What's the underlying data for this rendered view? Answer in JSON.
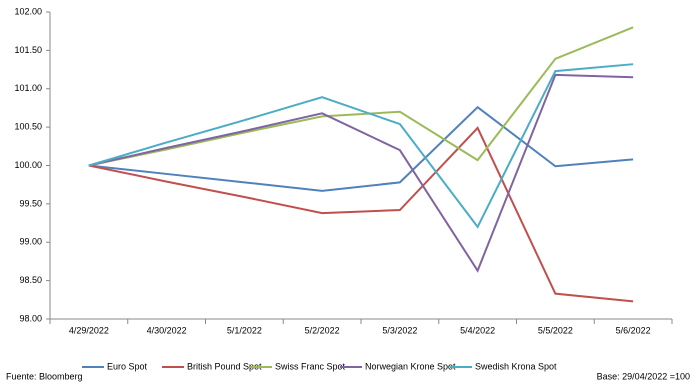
{
  "chart_data": {
    "type": "line",
    "categories": [
      "4/29/2022",
      "4/30/2022",
      "5/1/2022",
      "5/2/2022",
      "5/3/2022",
      "5/4/2022",
      "5/5/2022",
      "5/6/2022"
    ],
    "series": [
      {
        "name": "Euro Spot",
        "color": "#4f81bd",
        "values": [
          100,
          99.89,
          99.78,
          99.67,
          99.78,
          100.76,
          99.99,
          100.08
        ]
      },
      {
        "name": "British Pound Spot",
        "color": "#c0504d",
        "values": [
          100,
          99.79,
          99.59,
          99.38,
          99.42,
          100.49,
          98.33,
          98.23
        ]
      },
      {
        "name": "Swiss Franc Spot",
        "color": "#9bbb59",
        "values": [
          100,
          100.21,
          100.43,
          100.64,
          100.7,
          100.07,
          101.39,
          101.8
        ]
      },
      {
        "name": "Norwegian Krone Spot",
        "color": "#8064a2",
        "values": [
          100,
          100.23,
          100.45,
          100.68,
          100.2,
          98.63,
          101.18,
          101.15
        ]
      },
      {
        "name": "Swedish Krona Spot",
        "color": "#4bacc6",
        "values": [
          100,
          100.3,
          100.59,
          100.89,
          100.54,
          99.2,
          101.23,
          101.32
        ]
      }
    ],
    "ylim": [
      98,
      102
    ],
    "yticks": [
      {
        "value": 98,
        "label": "98.00"
      },
      {
        "value": 98.5,
        "label": "98.50"
      },
      {
        "value": 99,
        "label": "99.00"
      },
      {
        "value": 99.5,
        "label": "99.50"
      },
      {
        "value": 100,
        "label": "100.00"
      },
      {
        "value": 100.5,
        "label": "100.50"
      },
      {
        "value": 101,
        "label": "101.00"
      },
      {
        "value": 101.5,
        "label": "101.50"
      },
      {
        "value": 102,
        "label": "102.00"
      }
    ],
    "grid": false,
    "legend": "bottom",
    "source": "Fuente: Bloomberg",
    "note": "Base:  29/04/2022 =100"
  }
}
